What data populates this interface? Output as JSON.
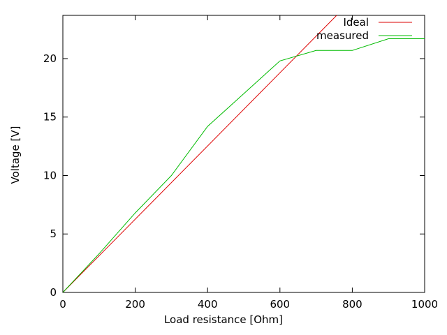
{
  "window": {
    "background": "#ffffff",
    "kind": "gnuplot-chart"
  },
  "chart_data": {
    "type": "line",
    "title": "",
    "xlabel": "Load resistance [Ohm]",
    "ylabel": "Voltage [V]",
    "xlim": [
      0,
      1000
    ],
    "ylim": [
      0,
      23.7
    ],
    "grid": false,
    "axis_color": "#000000",
    "background_color": "#ffffff",
    "legend": {
      "position": "top-right-inside",
      "entries": [
        "Ideal",
        "measured"
      ]
    },
    "x_ticks": [
      {
        "v": 0,
        "label": "0"
      },
      {
        "v": 200,
        "label": "200"
      },
      {
        "v": 400,
        "label": "400"
      },
      {
        "v": 600,
        "label": "600"
      },
      {
        "v": 800,
        "label": "800"
      },
      {
        "v": 1000,
        "label": "1000"
      }
    ],
    "y_ticks": [
      {
        "v": 0,
        "label": "0"
      },
      {
        "v": 5,
        "label": "5"
      },
      {
        "v": 10,
        "label": "10"
      },
      {
        "v": 15,
        "label": "15"
      },
      {
        "v": 20,
        "label": "20"
      }
    ],
    "series": [
      {
        "name": "Ideal",
        "color": "#dd0000",
        "points": [
          [
            0,
            0
          ],
          [
            760,
            23.8
          ]
        ]
      },
      {
        "name": "measured",
        "color": "#00bb00",
        "points": [
          [
            0,
            0
          ],
          [
            100,
            3.3
          ],
          [
            200,
            6.8
          ],
          [
            300,
            10
          ],
          [
            400,
            14.2
          ],
          [
            500,
            17
          ],
          [
            600,
            19.8
          ],
          [
            700,
            20.7
          ],
          [
            800,
            20.7
          ],
          [
            900,
            21.7
          ],
          [
            1000,
            21.7
          ]
        ]
      }
    ]
  }
}
